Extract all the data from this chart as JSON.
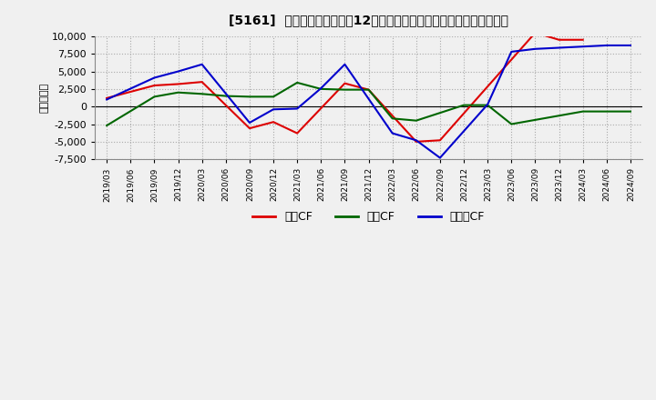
{
  "title": "[5161]  キャッシュフローの12か月移動合計の対前年同期増減額の推移",
  "ylabel": "（百万円）",
  "background_color": "#f0f0f0",
  "plot_background": "#f0f0f0",
  "grid_color": "#aaaaaa",
  "ylim": [
    -7500,
    10000
  ],
  "yticks": [
    -7500,
    -5000,
    -2500,
    0,
    2500,
    5000,
    7500,
    10000
  ],
  "x_labels": [
    "2019/03",
    "2019/06",
    "2019/09",
    "2019/12",
    "2020/03",
    "2020/06",
    "2020/09",
    "2020/12",
    "2021/03",
    "2021/06",
    "2021/09",
    "2021/12",
    "2022/03",
    "2022/06",
    "2022/09",
    "2022/12",
    "2023/03",
    "2023/06",
    "2023/09",
    "2023/12",
    "2024/03",
    "2024/06",
    "2024/09"
  ],
  "oc_x": [
    0,
    2,
    3,
    4,
    6,
    7,
    8,
    10,
    11,
    13,
    14,
    18,
    19,
    20
  ],
  "oc_y": [
    1200,
    3000,
    3200,
    3500,
    -3100,
    -2200,
    -3800,
    3300,
    2400,
    -5000,
    -4800,
    10500,
    9500,
    9500
  ],
  "ic_x": [
    0,
    2,
    3,
    4,
    5,
    6,
    7,
    8,
    9,
    10,
    11,
    12,
    13,
    15,
    16,
    17,
    20,
    22
  ],
  "ic_y": [
    -2700,
    1400,
    2000,
    1800,
    1500,
    1400,
    1400,
    3400,
    2500,
    2400,
    2400,
    -1700,
    -2000,
    200,
    200,
    -2500,
    -700,
    -700
  ],
  "fc_x": [
    0,
    2,
    3,
    4,
    6,
    7,
    8,
    9,
    10,
    12,
    13,
    14,
    16,
    17,
    18,
    21,
    22
  ],
  "fc_y": [
    1000,
    4100,
    5000,
    6000,
    -2300,
    -400,
    -300,
    2600,
    6000,
    -3800,
    -4800,
    -7300,
    300,
    7800,
    8200,
    8700,
    8700
  ],
  "oc_color": "#dd0000",
  "ic_color": "#006600",
  "fc_color": "#0000cc",
  "legend_labels": [
    "営業CF",
    "投資CF",
    "フリーCF"
  ],
  "legend_colors": [
    "#dd0000",
    "#006600",
    "#0000cc"
  ]
}
